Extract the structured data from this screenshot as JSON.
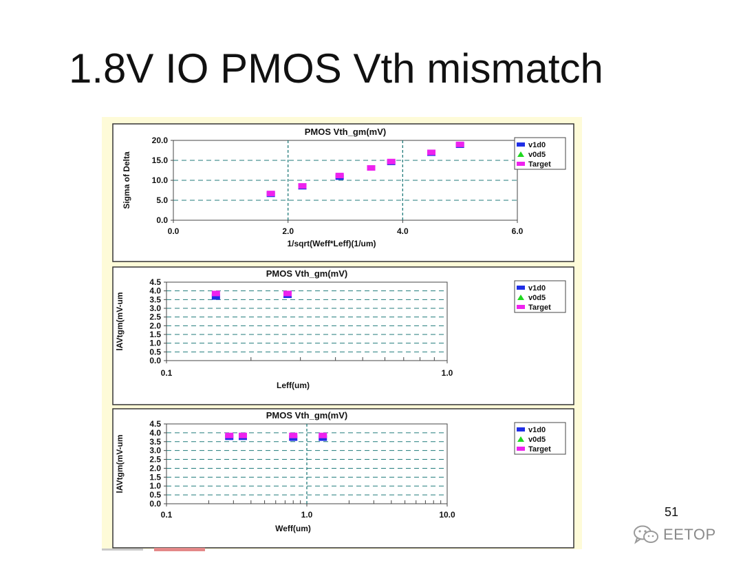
{
  "slide": {
    "title": "1.8V IO PMOS Vth mismatch",
    "page_number": "51",
    "watermark": "EETOP"
  },
  "colors": {
    "panel_bg": "#fefbd8",
    "v1d0": "#1f2ee6",
    "v0d5": "#1fd81f",
    "target": "#ee22ee",
    "grid": "#1f7a7a"
  },
  "chart_data": [
    {
      "type": "scatter",
      "title": "PMOS Vth_gm(mV)",
      "xlabel": "1/sqrt(Weff*Leff)(1/um)",
      "ylabel": "Sigma of Delta",
      "xscale": "linear",
      "xlim": [
        0,
        6
      ],
      "ylim": [
        0,
        20
      ],
      "xticks": [
        0,
        2,
        4,
        6
      ],
      "xtick_labels": [
        "0.0",
        "2.0",
        "4.0",
        "6.0"
      ],
      "yticks": [
        0,
        5,
        10,
        15,
        20
      ],
      "ytick_labels": [
        "0.0",
        "5.0",
        "10.0",
        "15.0",
        "20.0"
      ],
      "x_gridlines": [
        2,
        4
      ],
      "y_gridlines": [
        5,
        10,
        15
      ],
      "legend": [
        "v1d0",
        "v0d5",
        "Target"
      ],
      "legend_position": "right",
      "series": [
        {
          "name": "v1d0",
          "marker": "square",
          "points": [
            [
              1.7,
              6.5
            ],
            [
              2.25,
              8.4
            ],
            [
              2.9,
              10.8
            ],
            [
              3.8,
              14.5
            ],
            [
              4.5,
              16.8
            ],
            [
              5.0,
              18.8
            ]
          ]
        },
        {
          "name": "v0d5",
          "marker": "triangle",
          "points": []
        },
        {
          "name": "Target",
          "marker": "square",
          "points": [
            [
              1.7,
              6.7
            ],
            [
              2.25,
              8.6
            ],
            [
              2.9,
              11.2
            ],
            [
              3.45,
              13.1
            ],
            [
              3.8,
              14.7
            ],
            [
              4.5,
              17.0
            ],
            [
              5.0,
              19.0
            ]
          ]
        }
      ]
    },
    {
      "type": "scatter",
      "title": "PMOS Vth_gm(mV)",
      "xlabel": "Leff(um)",
      "ylabel": "lAVtgm(mV-um",
      "xscale": "log",
      "xlim": [
        0.1,
        1.0
      ],
      "ylim": [
        0,
        4.5
      ],
      "xticks": [
        0.1,
        1.0
      ],
      "xtick_labels": [
        "0.1",
        "1.0"
      ],
      "yticks": [
        0,
        0.5,
        1,
        1.5,
        2,
        2.5,
        3,
        3.5,
        4,
        4.5
      ],
      "ytick_labels": [
        "0.0",
        "0.5",
        "1.0",
        "1.5",
        "2.0",
        "2.5",
        "3.0",
        "3.5",
        "4.0",
        "4.5"
      ],
      "x_gridlines": [],
      "y_gridlines": [
        0.5,
        1,
        1.5,
        2,
        2.5,
        3,
        3.5,
        4
      ],
      "legend": [
        "v1d0",
        "v0d5",
        "Target"
      ],
      "legend_position": "right",
      "series": [
        {
          "name": "v1d0",
          "marker": "square",
          "points": [
            [
              0.15,
              3.65
            ],
            [
              0.27,
              3.75
            ]
          ]
        },
        {
          "name": "v0d5",
          "marker": "triangle",
          "points": []
        },
        {
          "name": "Target",
          "marker": "square",
          "points": [
            [
              0.15,
              3.85
            ],
            [
              0.27,
              3.85
            ]
          ]
        }
      ]
    },
    {
      "type": "scatter",
      "title": "PMOS Vth_gm(mV)",
      "xlabel": "Weff(um)",
      "ylabel": "lAVtgm(mV-um",
      "xscale": "log",
      "xlim": [
        0.1,
        10.0
      ],
      "ylim": [
        0,
        4.5
      ],
      "xticks": [
        0.1,
        1.0,
        10.0
      ],
      "xtick_labels": [
        "0.1",
        "1.0",
        "10.0"
      ],
      "yticks": [
        0,
        0.5,
        1,
        1.5,
        2,
        2.5,
        3,
        3.5,
        4,
        4.5
      ],
      "ytick_labels": [
        "0.0",
        "0.5",
        "1.0",
        "1.5",
        "2.0",
        "2.5",
        "3.0",
        "3.5",
        "4.0",
        "4.5"
      ],
      "x_gridlines": [
        1.0
      ],
      "y_gridlines": [
        0.5,
        1,
        1.5,
        2,
        2.5,
        3,
        3.5,
        4
      ],
      "legend": [
        "v1d0",
        "v0d5",
        "Target"
      ],
      "legend_position": "right",
      "series": [
        {
          "name": "v1d0",
          "marker": "square",
          "points": [
            [
              0.28,
              3.75
            ],
            [
              0.35,
              3.75
            ],
            [
              0.8,
              3.7
            ],
            [
              1.3,
              3.7
            ]
          ]
        },
        {
          "name": "v0d5",
          "marker": "triangle",
          "points": []
        },
        {
          "name": "Target",
          "marker": "square",
          "points": [
            [
              0.28,
              3.85
            ],
            [
              0.35,
              3.85
            ],
            [
              0.8,
              3.85
            ],
            [
              1.3,
              3.85
            ]
          ]
        }
      ]
    }
  ]
}
